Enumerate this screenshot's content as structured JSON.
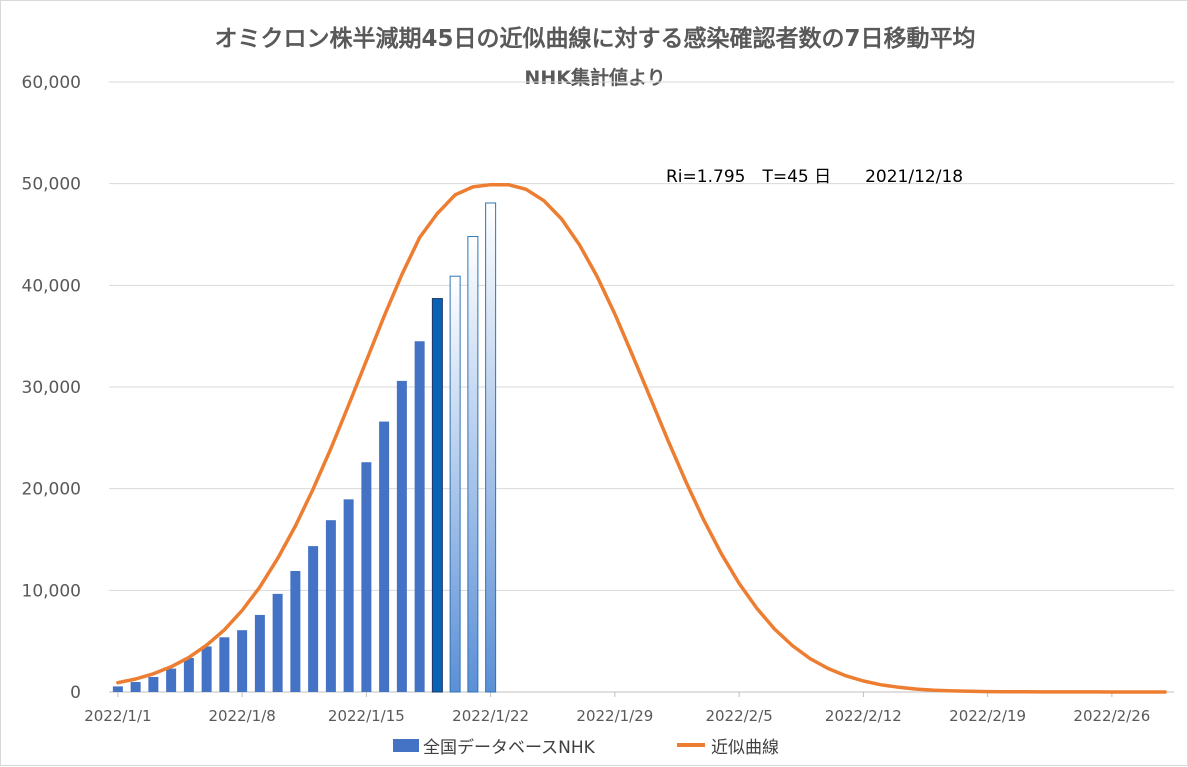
{
  "chart_data": {
    "type": "bar+line",
    "title": "オミクロン株半減期45日の近似曲線に対する感染確認者数の7日移動平均",
    "subtitle": "NHK集計値より",
    "annotation": "Ri=1.795　T=45 日　　2021/12/18",
    "ylim": [
      0,
      60000
    ],
    "y_ticks": [
      "0",
      "10,000",
      "20,000",
      "30,000",
      "40,000",
      "50,000",
      "60,000"
    ],
    "x_tick_labels": [
      "2022/1/1",
      "2022/1/8",
      "2022/1/15",
      "2022/1/22",
      "2022/1/29",
      "2022/2/5",
      "2022/2/12",
      "2022/2/19",
      "2022/2/26"
    ],
    "x_start": "2022/1/1",
    "n_days": 60,
    "legend": [
      "全国データベースNHK",
      "近似曲線"
    ],
    "colors": {
      "bar": "#4472c4",
      "bar_highlight": "#0a62b6",
      "bar_projected_top": "#ffffff",
      "bar_projected_bottom": "#5b8fd6",
      "bar_projected_border": "#2e75b6",
      "line": "#ed7d31",
      "grid": "#d9d9d9",
      "axis": "#bfbfbf",
      "tick_text": "#595959"
    },
    "bars": {
      "name": "全国データベースNHK",
      "values": [
        550,
        980,
        1480,
        2300,
        3350,
        4480,
        5380,
        6080,
        7580,
        9650,
        11900,
        14350,
        16900,
        18950,
        22600,
        26600,
        30600,
        34500,
        38700,
        40900,
        44800,
        48100
      ],
      "highlight_index": 18,
      "projected_from": 19
    },
    "curve": {
      "name": "近似曲線",
      "peak_day": 22.5,
      "peak_value": 49900,
      "sigma_days": 7.6,
      "values": [
        910,
        1280,
        1790,
        2480,
        3400,
        4600,
        6120,
        8020,
        10340,
        13120,
        16330,
        19960,
        23950,
        28220,
        32600,
        36950,
        41070,
        44700,
        47080,
        48900,
        49680,
        49900,
        49900,
        49450,
        48320,
        46520,
        44000,
        40870,
        37170,
        33100,
        28920,
        24720,
        20690,
        16950,
        13590,
        10680,
        8220,
        6190,
        4560,
        3290,
        2320,
        1600,
        1080,
        710,
        460,
        290,
        180,
        110,
        70,
        40,
        30,
        20,
        10,
        10,
        5,
        5,
        0,
        0,
        0,
        0
      ]
    }
  }
}
